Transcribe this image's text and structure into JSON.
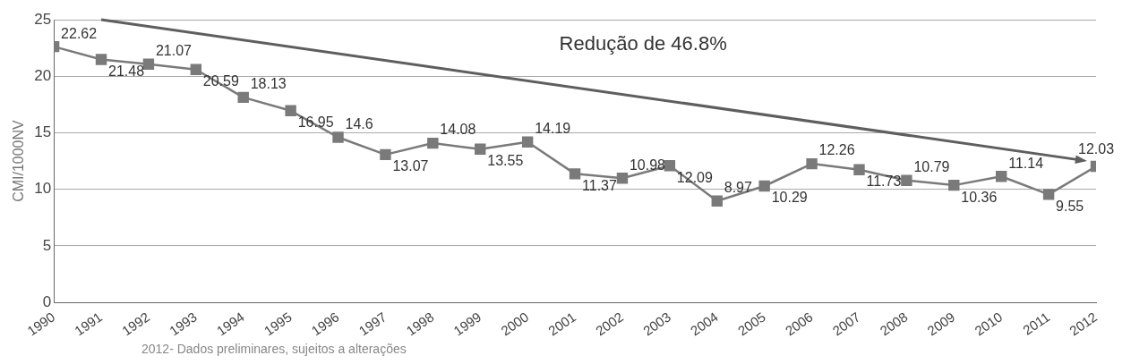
{
  "chart_data": {
    "type": "line",
    "ylabel": "CMI/1000NV",
    "categories": [
      "1990",
      "1991",
      "1992",
      "1993",
      "1994",
      "1995",
      "1996",
      "1997",
      "1998",
      "1999",
      "2000",
      "2001",
      "2002",
      "2003",
      "2004",
      "2005",
      "2006",
      "2007",
      "2008",
      "2009",
      "2010",
      "2011",
      "2012"
    ],
    "series": [
      {
        "color": "#7a7a7a",
        "values": [
          22.62,
          21.48,
          21.07,
          20.59,
          18.13,
          16.95,
          14.6,
          13.07,
          14.08,
          13.55,
          14.19,
          11.37,
          10.98,
          12.09,
          8.97,
          10.29,
          12.26,
          11.73,
          10.79,
          10.36,
          11.14,
          9.55,
          12.03
        ]
      }
    ],
    "ylim": [
      0,
      25
    ],
    "yticks": [
      0,
      5,
      10,
      15,
      20,
      25
    ],
    "grid": "y",
    "marker": "square",
    "line_style": "solid",
    "data_labels": true,
    "annotations": [
      "Redução de 46.8%",
      "2012- Dados preliminares, sujeitos a alterações"
    ]
  }
}
